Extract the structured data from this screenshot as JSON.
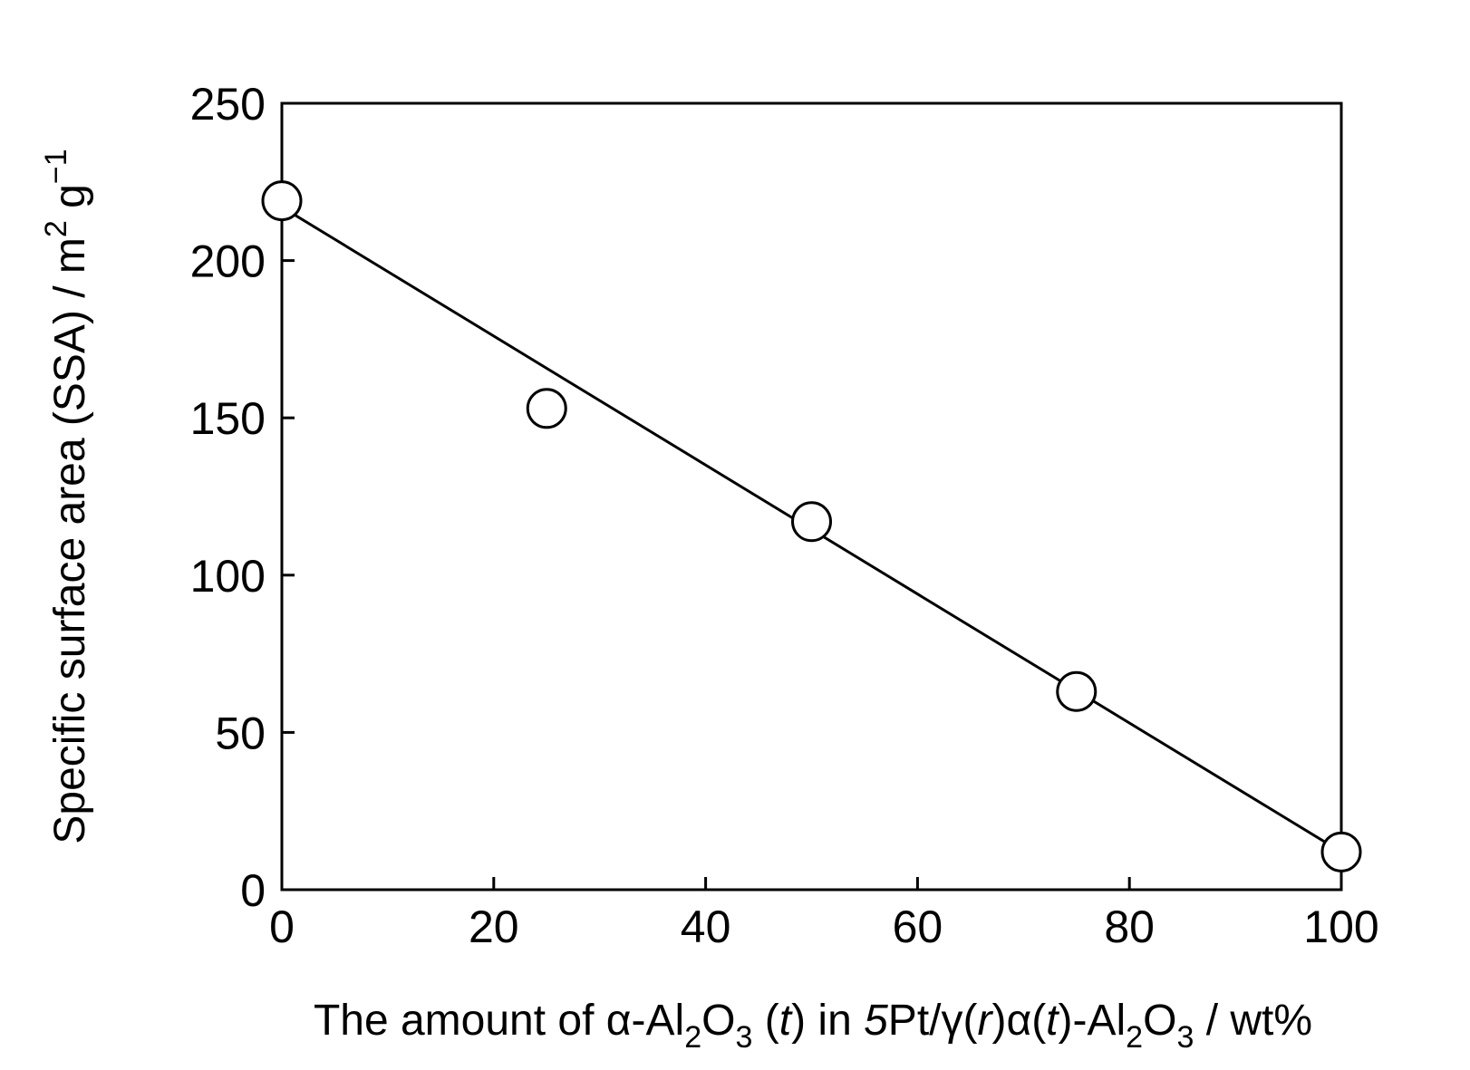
{
  "chart_data": {
    "type": "scatter",
    "xlabel": "The amount of α-Al2O3 (t) in 5Pt/γ(r)α(t)-Al2O3 / wt%",
    "ylabel": "Specific surface area (SSA) / m2 g−1",
    "xlim": [
      0,
      100
    ],
    "ylim": [
      0,
      250
    ],
    "x_ticks": [
      0,
      20,
      40,
      60,
      80,
      100
    ],
    "y_ticks": [
      0,
      50,
      100,
      150,
      200,
      250
    ],
    "grid": false,
    "legend": "none",
    "series": [
      {
        "marker": "open-circle",
        "x": [
          0,
          25,
          50,
          75,
          100
        ],
        "y": [
          219,
          153,
          117,
          63,
          12
        ]
      }
    ],
    "fit_line": {
      "x": [
        0,
        100
      ],
      "y": [
        217,
        12
      ]
    }
  },
  "colors": {
    "ink": "#000000",
    "background": "#ffffff"
  }
}
